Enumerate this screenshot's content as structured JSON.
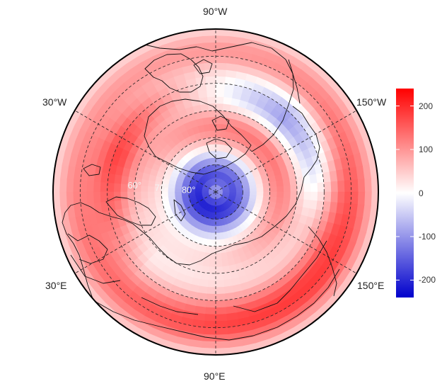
{
  "map": {
    "projection": "north-polar stereographic",
    "lon_labels": [
      {
        "text": "90°W"
      },
      {
        "text": "30°W"
      },
      {
        "text": "150°W"
      },
      {
        "text": "30°E"
      },
      {
        "text": "150°E"
      },
      {
        "text": "90°E"
      }
    ],
    "lat_labels": [
      "80°",
      "70°",
      "60°"
    ],
    "graticule_latitudes": [
      80,
      70,
      60,
      50,
      40
    ],
    "graticule_longitudes": [
      -90,
      -30,
      30,
      90,
      150,
      210
    ],
    "colorscale": {
      "low": "#0000cc",
      "mid": "#ffffff",
      "high": "#ff0000",
      "min": -230,
      "max": 230
    }
  },
  "legend": {
    "ticks": [
      "200",
      "100",
      "0",
      "-100",
      "-200"
    ],
    "tick_values": [
      200,
      100,
      0,
      -100,
      -200
    ],
    "min": -240,
    "max": 240
  }
}
